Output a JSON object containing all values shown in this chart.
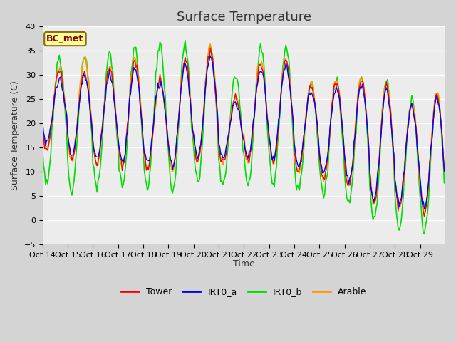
{
  "title": "Surface Temperature",
  "ylabel": "Surface Temperature (C)",
  "xlabel": "Time",
  "annotation": "BC_met",
  "ylim": [
    -5,
    40
  ],
  "tick_labels": [
    "Oct 14",
    "Oct 15",
    "Oct 16",
    "Oct 17",
    "Oct 18",
    "Oct 19",
    "Oct 20",
    "Oct 21",
    "Oct 22",
    "Oct 23",
    "Oct 24",
    "Oct 25",
    "Oct 26",
    "Oct 27",
    "Oct 28",
    "Oct 29"
  ],
  "series_colors": {
    "Tower": "#ff0000",
    "IRT0_a": "#0000ff",
    "IRT0_b": "#00dd00",
    "Arable": "#ff9900"
  },
  "fig_bg": "#d4d4d4",
  "plot_bg": "#ececec",
  "grid_color": "#ffffff",
  "title_fontsize": 13,
  "label_fontsize": 9,
  "tick_fontsize": 8,
  "day_night_mins_tower": [
    14.5,
    12.5,
    11.5,
    11.0,
    11.0,
    10.5,
    12.0,
    12.0,
    12.0,
    12.0,
    10.5,
    8.5,
    7.0,
    3.5,
    2.5,
    1.5
  ],
  "day_peaks_tower": [
    31.0,
    30.5,
    31.5,
    33.0,
    29.0,
    33.0,
    35.0,
    25.0,
    32.5,
    33.0,
    27.5,
    28.5,
    29.0,
    28.0,
    24.0,
    26.0
  ],
  "day_night_mins_irt0a": [
    16.5,
    13.5,
    12.5,
    12.0,
    12.0,
    11.0,
    13.0,
    13.0,
    13.0,
    13.0,
    11.5,
    9.5,
    8.0,
    4.5,
    3.5,
    2.5
  ],
  "day_peaks_irt0a": [
    29.0,
    30.0,
    30.0,
    31.5,
    28.5,
    32.0,
    34.0,
    24.5,
    31.5,
    32.0,
    26.5,
    27.5,
    28.0,
    27.0,
    23.5,
    25.0
  ],
  "day_night_mins_irt0b": [
    8.0,
    6.5,
    6.5,
    7.0,
    7.0,
    6.0,
    8.0,
    7.5,
    7.5,
    7.5,
    6.5,
    5.5,
    3.5,
    0.0,
    -2.0,
    -2.5
  ],
  "day_peaks_irt0b": [
    33.5,
    34.0,
    34.5,
    36.0,
    36.0,
    36.0,
    36.0,
    30.0,
    35.5,
    35.5,
    29.0,
    29.0,
    29.0,
    29.0,
    25.0,
    27.0
  ],
  "day_night_mins_arable": [
    14.5,
    12.5,
    11.5,
    11.0,
    11.0,
    10.5,
    12.0,
    12.0,
    12.0,
    12.0,
    10.0,
    8.5,
    7.0,
    3.5,
    2.5,
    1.5
  ],
  "day_peaks_arable": [
    31.0,
    33.5,
    31.5,
    33.5,
    29.0,
    33.5,
    36.0,
    25.5,
    33.0,
    33.5,
    28.0,
    29.0,
    29.5,
    28.5,
    24.5,
    26.5
  ]
}
